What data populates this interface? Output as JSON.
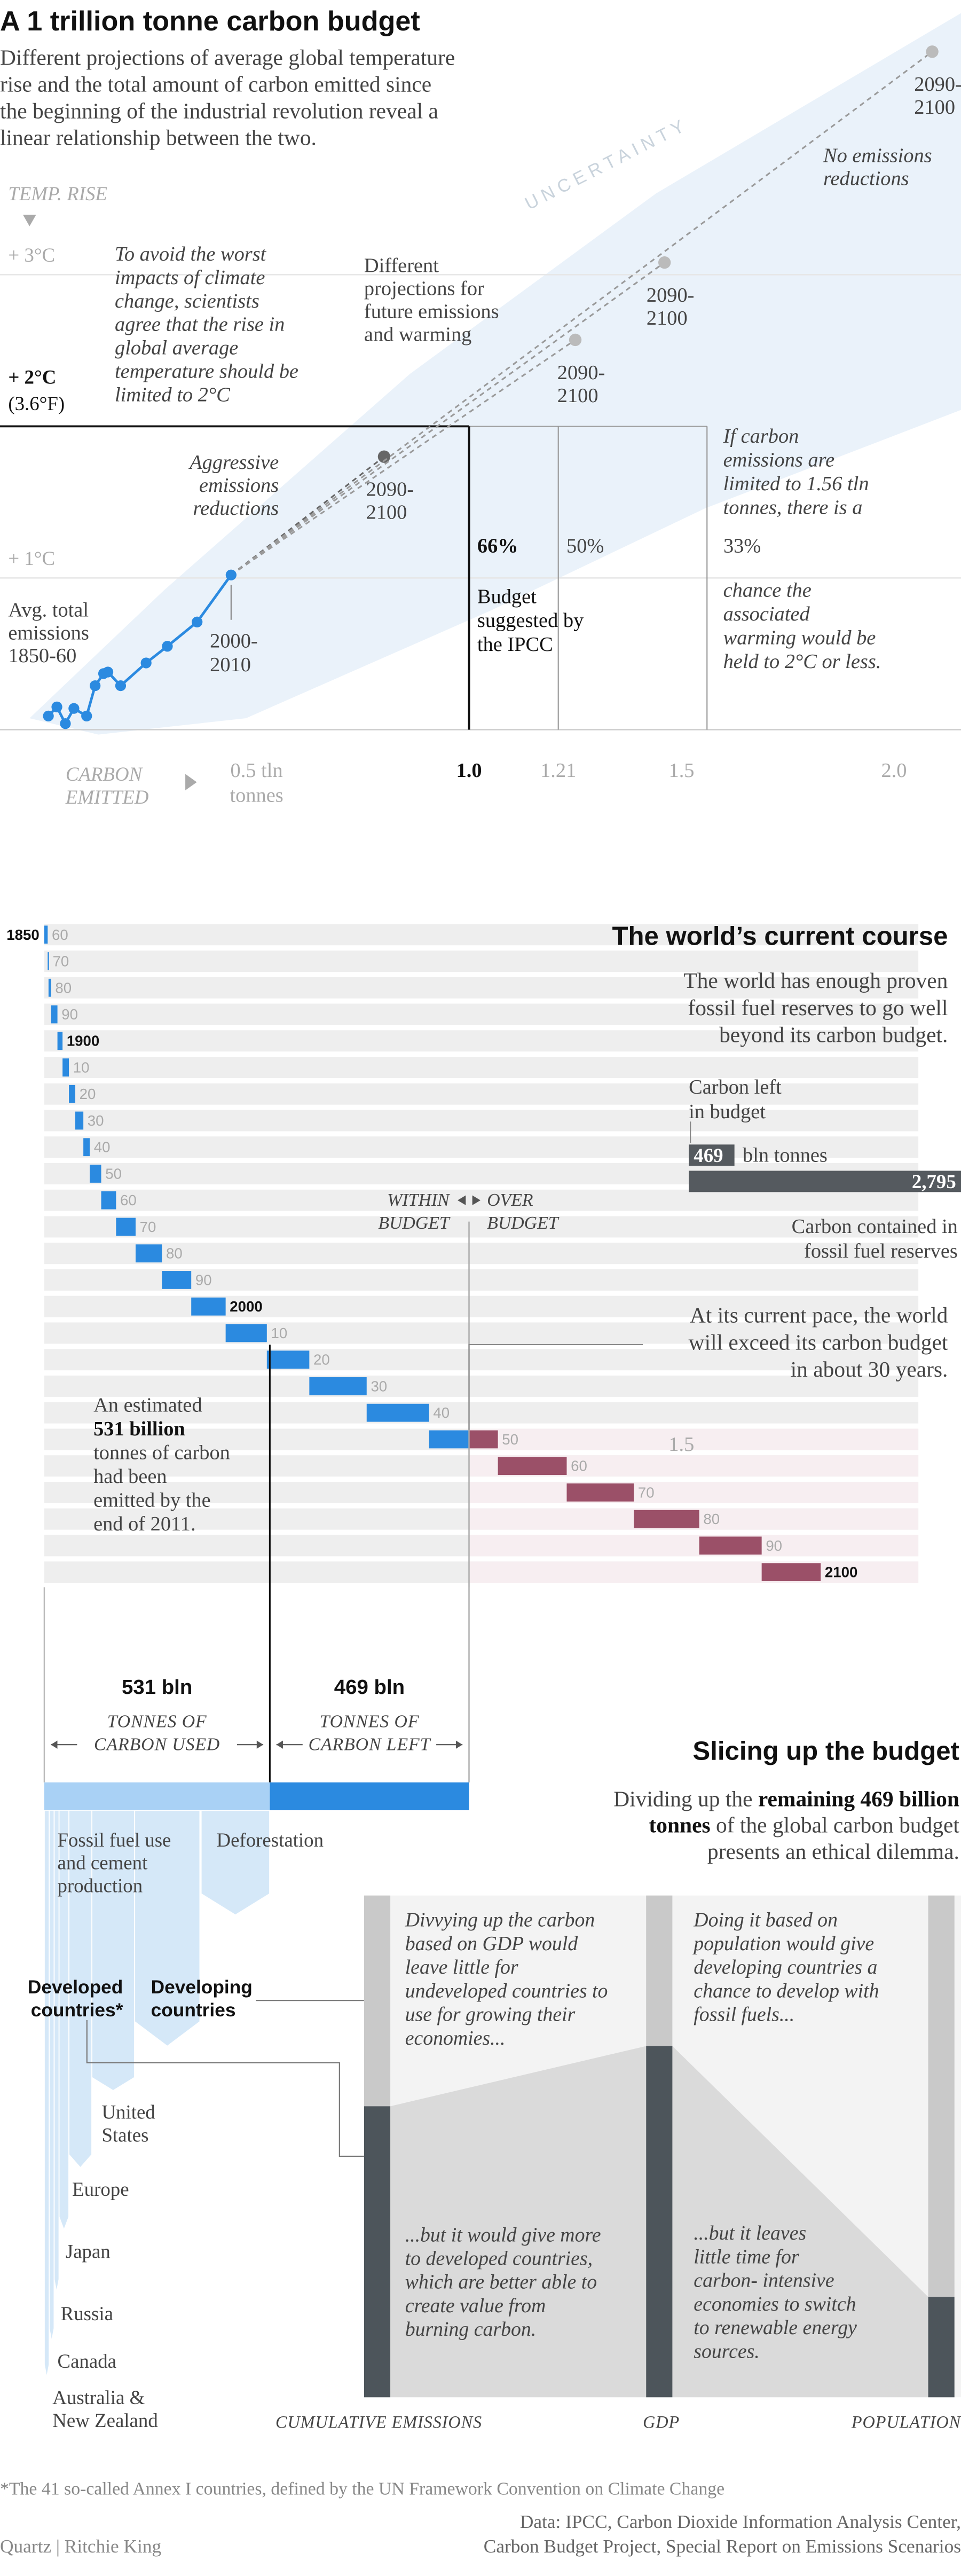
{
  "title": "A 1 trillion tonne carbon budget",
  "intro": [
    "Different projections of average global temperature",
    "rise and the total amount of carbon emitted since",
    "the beginning of the industrial revolution reveal a",
    "linear relationship between the two."
  ],
  "chart_data": [
    {
      "type": "scatter",
      "y_label": "TEMP. RISE",
      "x_label": [
        "CARBON",
        "EMITTED"
      ],
      "xlim": [
        -0.1,
        2.15
      ],
      "ylim": [
        0,
        4.5
      ],
      "yticks": [
        {
          "value": 1,
          "label": "+ 1°C"
        },
        {
          "value": 2,
          "label": "+ 2°C"
        },
        {
          "value": 3,
          "label": "+ 3°C"
        }
      ],
      "fahrenheit": "(3.6°F)",
      "xticks": [
        {
          "value": 0.5,
          "label": "0.5 tln"
        },
        {
          "value": 1,
          "label": "1.0"
        },
        1.21,
        1.5,
        {
          "value": 2,
          "label": "2.0"
        }
      ],
      "x_unit": "tonnes",
      "color": "#2b8ae0",
      "band_color": "#eaf2fa",
      "historical": {
        "x": [
          0.01,
          0.03,
          0.05,
          0.07,
          0.1,
          0.12,
          0.14,
          0.15,
          0.18,
          0.24,
          0.29,
          0.36,
          0.44
        ],
        "values": [
          0.09,
          0.15,
          0.04,
          0.14,
          0.09,
          0.29,
          0.37,
          0.38,
          0.29,
          0.44,
          0.55,
          0.71,
          1.02
        ]
      },
      "projections": {
        "x": [
          0.8,
          1.25,
          1.46,
          2.09
        ],
        "values": [
          1.8,
          2.57,
          3.08,
          4.47
        ],
        "labels": [
          [
            "2090-",
            "2100"
          ],
          [
            "2090-",
            "2100"
          ],
          [
            "2090-",
            "2100"
          ],
          [
            "2090-",
            "2100"
          ]
        ],
        "color": "#9a9a9a"
      },
      "thresholds": {
        "x": [
          1,
          1.21,
          1.56
        ],
        "values": [
          66,
          50,
          33
        ],
        "value_labels": [
          "66%",
          "50%",
          "33%"
        ]
      },
      "ipcc": [
        "Budget",
        "suggested by",
        "the IPCC"
      ],
      "limit": [
        "If carbon",
        "emissions are",
        "limited to 1.56 tln",
        "tonnes, there is a"
      ],
      "chance": [
        "chance the",
        "associated",
        "warming would be",
        "held to 2°C or less."
      ],
      "avoid": [
        "To avoid the worst",
        "impacts of climate",
        "change, scientists",
        "agree that the rise in",
        "global average",
        "temperature should be",
        "limited to 2°C"
      ],
      "different": [
        "Different",
        "projections for",
        "future emissions",
        "and warming"
      ],
      "aggressive": [
        "Aggressive",
        "emissions",
        "reductions"
      ],
      "no_emissions": [
        "No emissions",
        "reductions"
      ],
      "recent": [
        "2000-",
        "2010"
      ],
      "avg": [
        "Avg. total",
        "emissions",
        "1850-60"
      ],
      "uncertainty": "UNCERTAINTY"
    },
    {
      "type": "bar",
      "title": "The world’s current course",
      "subtitle": [
        "The world has enough proven",
        "fossil fuel reserves to go well",
        "beyond its carbon budget."
      ],
      "start_label": "1850",
      "categories": [
        "60",
        "70",
        "80",
        "90",
        "1900",
        "10",
        "20",
        "30",
        "40",
        "50",
        "60",
        "70",
        "80",
        "90",
        "2000",
        "10",
        "20",
        "30",
        "40",
        "50",
        "60",
        "70",
        "80",
        "90",
        "2100"
      ],
      "values": [
        8,
        2,
        6,
        15,
        12,
        15,
        15,
        19,
        15,
        27,
        35,
        46,
        62,
        69,
        81,
        97,
        100,
        135,
        147,
        162,
        162,
        158,
        154,
        147,
        139
      ],
      "color": "#2b8ae0",
      "over_color": "#9b5068",
      "xticks": [
        {
          "value": 1500,
          "label": "1.5"
        }
      ],
      "within": [
        "WITHIN",
        "BUDGET"
      ],
      "over": [
        "OVER",
        "BUDGET"
      ],
      "annotation": [
        "An estimated",
        "531 billion",
        "tonnes of carbon",
        "had been",
        "emitted by the",
        "end of 2011."
      ],
      "pace": [
        "At its current pace, the world",
        "will exceed its carbon budget",
        "in about 30 years."
      ]
    },
    {
      "type": "bar",
      "label": [
        "Carbon left",
        "in budget"
      ],
      "values": [
        469,
        2795
      ],
      "value_labels": [
        "469",
        "2,795"
      ],
      "unit": "bln tonnes",
      "reserves_label": [
        "Carbon contained in",
        "fossil fuel reserves"
      ],
      "color": "#555a5f"
    },
    {
      "type": "bar",
      "title": "Slicing up the budget",
      "subtitle": [
        [
          "Dividing up the ",
          "remaining 469 billion"
        ],
        [
          "tonnes",
          " of the global carbon budget"
        ],
        [
          "presents an ethical dilemma."
        ]
      ],
      "categories": [
        [
          "TONNES OF",
          "CARBON USED"
        ],
        [
          "TONNES OF",
          "CARBON LEFT"
        ]
      ],
      "values": [
        531,
        469
      ],
      "value_labels": [
        "531 bln",
        "469 bln"
      ],
      "colors": [
        "#a9d1f5",
        "#2b8ae0"
      ],
      "flow_color": "#d5e8f8",
      "fossil": [
        "Fossil fuel use",
        "and cement",
        "production"
      ],
      "deforestation": "Deforestation",
      "developed": [
        "Developed",
        "countries*"
      ],
      "developing": [
        "Developing",
        "countries"
      ],
      "countries": [
        [
          "United",
          "States"
        ],
        [
          "Europe"
        ],
        [
          "Japan"
        ],
        [
          "Russia"
        ],
        [
          "Canada"
        ],
        [
          "Australia &",
          "New Zealand"
        ]
      ]
    },
    {
      "type": "bar",
      "categories": [
        "CUMULATIVE EMISSIONS",
        "GDP",
        "POPULATION"
      ],
      "values": [
        58,
        70,
        20
      ],
      "ylim": [
        0,
        100
      ],
      "color": "#4d555b",
      "rest_color": "#c9c9c9",
      "gdp_top": [
        "Divvying up the carbon",
        "based on GDP would",
        "leave little for",
        "undeveloped countries to",
        "use for growing their",
        "economies..."
      ],
      "gdp_bottom": [
        "...but it would give more",
        "to developed countries,",
        "which are better able to",
        "create value from",
        "burning carbon."
      ],
      "pop_top": [
        "Doing it based on",
        "population would give",
        "developing countries a",
        "chance to develop with",
        "fossil fuels..."
      ],
      "pop_bottom": [
        "...but it leaves",
        "little time for",
        "carbon- intensive",
        "economies to switch",
        "to renewable energy",
        "sources."
      ]
    }
  ],
  "footnote": "*The 41 so-called Annex I countries, defined by the UN Framework Convention on Climate Change",
  "credit": "Quartz | Ritchie King",
  "sources": [
    "Data: IPCC, Carbon Dioxide Information Analysis Center,",
    "Carbon Budget Project, Special Report on Emissions Scenarios"
  ]
}
